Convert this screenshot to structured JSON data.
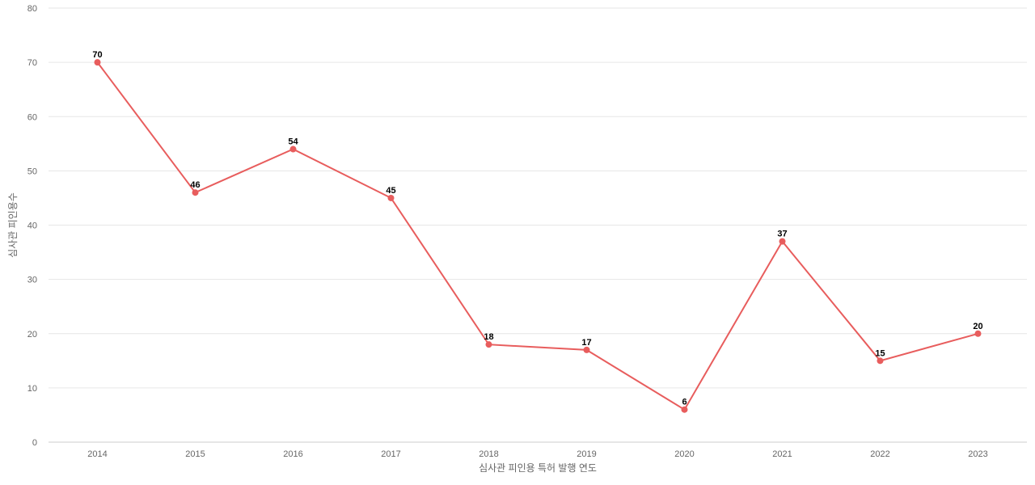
{
  "chart_data": {
    "type": "line",
    "title": "",
    "xlabel": "심사관 피인용 특허 발행 연도",
    "ylabel": "심사관 피인용수",
    "x": [
      "2014",
      "2015",
      "2016",
      "2017",
      "2018",
      "2019",
      "2020",
      "2021",
      "2022",
      "2023"
    ],
    "series": [
      {
        "values": [
          70,
          46,
          54,
          45,
          18,
          17,
          6,
          37,
          15,
          20
        ],
        "color": "#e85d5d"
      }
    ],
    "ylim": [
      0,
      80
    ],
    "yticks": [
      "0",
      "10",
      "20",
      "30",
      "40",
      "50",
      "60",
      "70",
      "80"
    ],
    "grid": true,
    "data_labels": true,
    "legend": "none",
    "colors": {
      "grid": "#e6e6e6",
      "axis": "#cccccc",
      "text": "#666666",
      "line": "#e85d5d"
    }
  }
}
